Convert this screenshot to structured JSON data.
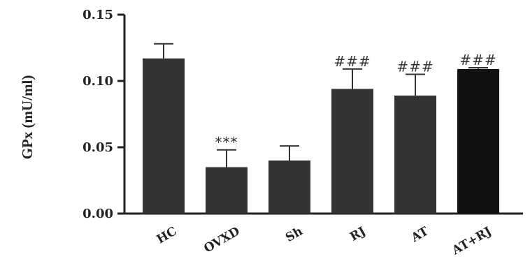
{
  "chart_data": {
    "type": "bar",
    "ylabel": "GPx (mU/ml)",
    "ylim": [
      0,
      0.15
    ],
    "yticks": [
      0.0,
      0.05,
      0.1,
      0.15
    ],
    "ytick_labels": [
      "0.00",
      "0.05",
      "0.10",
      "0.15"
    ],
    "categories": [
      "HC",
      "OVXD",
      "Sh",
      "RJ",
      "AT",
      "AT+RJ"
    ],
    "values": [
      0.117,
      0.035,
      0.04,
      0.094,
      0.089,
      0.109
    ],
    "errors": [
      0.011,
      0.013,
      0.011,
      0.015,
      0.016,
      0.001
    ],
    "annotations": [
      "",
      "***",
      "",
      "###",
      "###",
      "###"
    ],
    "bar_colors": [
      "#333333",
      "#333333",
      "#333333",
      "#333333",
      "#333333",
      "#111111"
    ]
  }
}
